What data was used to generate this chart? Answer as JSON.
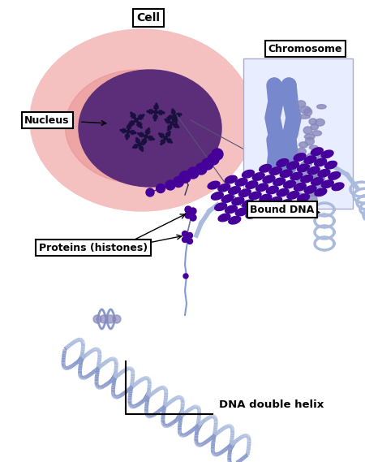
{
  "background_color": "#ffffff",
  "fig_width": 4.5,
  "fig_height": 5.69,
  "dpi": 100,
  "labels": {
    "cell": "Cell",
    "nucleus": "Nucleus",
    "chromosome": "Chromosome",
    "bound_dna": "Bound DNA",
    "proteins": "Proteins (histones)",
    "dna_helix": "DNA double helix"
  },
  "colors": {
    "cell_outer_light": "#f5c0c0",
    "cell_outer_mid": "#e89090",
    "nucleus_purple": "#5c2d78",
    "chromosome_blue": "#7788cc",
    "chromosome_light": "#9999dd",
    "dna_blue_light": "#aabbdd",
    "dna_blue_mid": "#8899cc",
    "nucleosome_purple": "#440099",
    "nucleosome_dark": "#220055",
    "chrom_coil": "#8888bb",
    "text_color": "#000000",
    "chrom_x_color": "#1a1040"
  }
}
